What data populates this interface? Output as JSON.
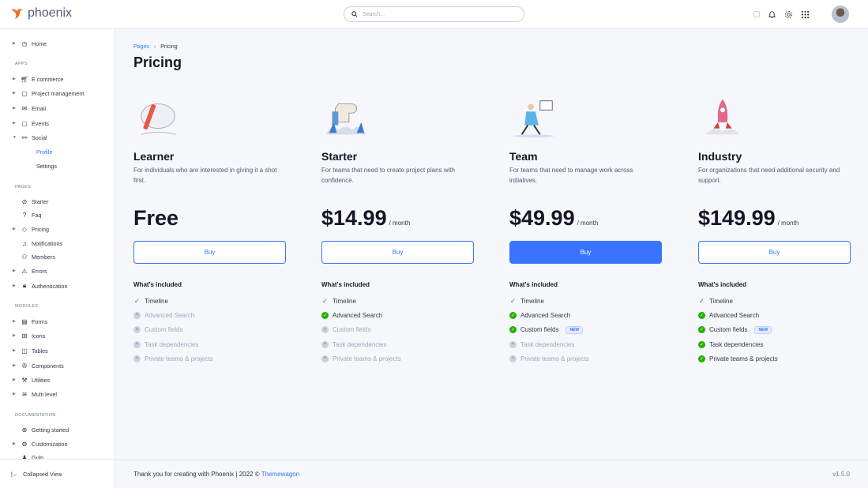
{
  "brand": {
    "name": "phoenix",
    "accent": "#3874ff"
  },
  "search": {
    "placeholder": "Search..."
  },
  "topbar": {
    "icons": [
      "theme-toggle-icon",
      "bell-icon",
      "gear-icon",
      "apps-grid-icon"
    ]
  },
  "sidebar": {
    "items": [
      {
        "type": "item",
        "label": "Home",
        "icon": "◷",
        "caret": true
      },
      {
        "type": "section",
        "label": "APPS"
      },
      {
        "type": "item",
        "label": "E commerce",
        "icon": "🛒︎",
        "caret": true
      },
      {
        "type": "item",
        "label": "Project management",
        "icon": "▢",
        "caret": true
      },
      {
        "type": "item",
        "label": "Email",
        "icon": "✉",
        "caret": true
      },
      {
        "type": "item",
        "label": "Events",
        "icon": "▢",
        "caret": true
      },
      {
        "type": "item",
        "label": "Social",
        "icon": "⚯",
        "caret": true,
        "open": true
      },
      {
        "type": "sub",
        "label": "Profile",
        "active": true
      },
      {
        "type": "sub",
        "label": "Settings"
      },
      {
        "type": "section",
        "label": "PAGES"
      },
      {
        "type": "item",
        "label": "Starter",
        "icon": "⊘"
      },
      {
        "type": "item",
        "label": "Faq",
        "icon": "?"
      },
      {
        "type": "item",
        "label": "Pricing",
        "icon": "◇",
        "caret": true
      },
      {
        "type": "item",
        "label": "Notifications",
        "icon": "♫"
      },
      {
        "type": "item",
        "label": "Members",
        "icon": "⚇"
      },
      {
        "type": "item",
        "label": "Errors",
        "icon": "⚠",
        "caret": true
      },
      {
        "type": "item",
        "label": "Authentication",
        "icon": "🔒︎",
        "caret": true
      },
      {
        "type": "section",
        "label": "MODULES"
      },
      {
        "type": "item",
        "label": "Forms",
        "icon": "▤",
        "caret": true
      },
      {
        "type": "item",
        "label": "Icons",
        "icon": "⊞",
        "caret": true
      },
      {
        "type": "item",
        "label": "Tables",
        "icon": "◫",
        "caret": true
      },
      {
        "type": "item",
        "label": "Components",
        "icon": "✇",
        "caret": true
      },
      {
        "type": "item",
        "label": "Utilities",
        "icon": "⚒",
        "caret": true
      },
      {
        "type": "item",
        "label": "Multi level",
        "icon": "≋",
        "caret": true
      },
      {
        "type": "section",
        "label": "DOCUMENTATION"
      },
      {
        "type": "item",
        "label": "Getting started",
        "icon": "⊕"
      },
      {
        "type": "item",
        "label": "Customization",
        "icon": "⚙",
        "caret": true
      },
      {
        "type": "item",
        "label": "Gulp",
        "icon": "♟"
      }
    ],
    "collapse_label": "Collapsed View"
  },
  "breadcrumb": {
    "parent": "Pages",
    "current": "Pricing"
  },
  "page_title": "Pricing",
  "plans": [
    {
      "name": "Learner",
      "desc": "For individuals who are interested in giving it a shot first.",
      "price": "Free",
      "per": "",
      "buy": "Buy",
      "primary": false,
      "included_title": "What's included",
      "features": [
        {
          "label": "Timeline",
          "status": "check"
        },
        {
          "label": "Advanced Search",
          "status": "excluded"
        },
        {
          "label": "Custom fields",
          "status": "excluded"
        },
        {
          "label": "Task dependencies",
          "status": "excluded"
        },
        {
          "label": "Private teams & projects",
          "status": "excluded"
        }
      ]
    },
    {
      "name": "Starter",
      "desc": "For teams that need to create project plans with confidence.",
      "price": "$14.99",
      "per": "/ month",
      "buy": "Buy",
      "primary": false,
      "included_title": "What's included",
      "features": [
        {
          "label": "Timeline",
          "status": "check"
        },
        {
          "label": "Advanced Search",
          "status": "included"
        },
        {
          "label": "Custom fields",
          "status": "excluded"
        },
        {
          "label": "Task dependencies",
          "status": "excluded"
        },
        {
          "label": "Private teams & projects",
          "status": "excluded"
        }
      ]
    },
    {
      "name": "Team",
      "desc": "For teams that need to manage work across initiatives.",
      "price": "$49.99",
      "per": "/ month",
      "buy": "Buy",
      "primary": true,
      "included_title": "What's included",
      "features": [
        {
          "label": "Timeline",
          "status": "check"
        },
        {
          "label": "Advanced Search",
          "status": "included"
        },
        {
          "label": "Custom fields",
          "status": "included",
          "badge": "NEW"
        },
        {
          "label": "Task dependencies",
          "status": "excluded"
        },
        {
          "label": "Private teams & projects",
          "status": "excluded"
        }
      ]
    },
    {
      "name": "Industry",
      "desc": "For organizations that need additional security and support.",
      "price": "$149.99",
      "per": "/ month",
      "buy": "Buy",
      "primary": false,
      "included_title": "What's included",
      "features": [
        {
          "label": "Timeline",
          "status": "check"
        },
        {
          "label": "Advanced Search",
          "status": "included"
        },
        {
          "label": "Custom fields",
          "status": "included",
          "badge": "NEW"
        },
        {
          "label": "Task dependencies",
          "status": "included"
        },
        {
          "label": "Private teams & projects",
          "status": "included"
        }
      ]
    }
  ],
  "footer": {
    "text": "Thank you for creating with Phoenix | 2022 ©",
    "link": "Themewagon",
    "version": "v1.5.0"
  }
}
